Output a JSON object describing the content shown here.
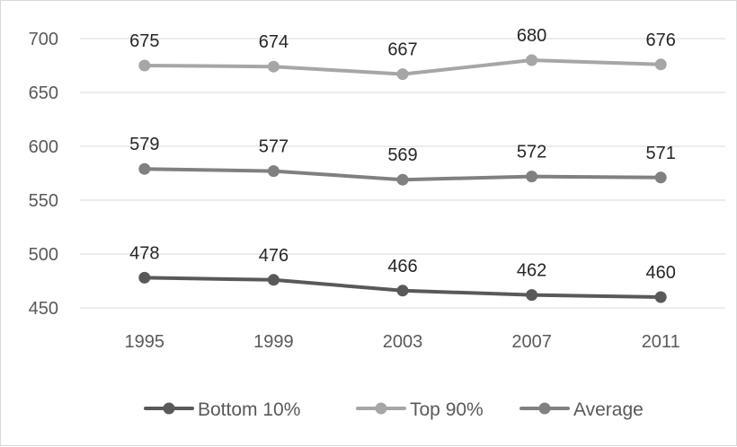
{
  "chart_data": {
    "type": "line",
    "title": "",
    "xlabel": "",
    "ylabel": "",
    "categories": [
      "1995",
      "1999",
      "2003",
      "2007",
      "2011"
    ],
    "ylim": [
      450,
      700
    ],
    "yticks": [
      450,
      500,
      550,
      600,
      650,
      700
    ],
    "grid": true,
    "legend_position": "bottom",
    "series": [
      {
        "name": "Bottom 10%",
        "values": [
          478,
          476,
          466,
          462,
          460
        ],
        "color": "#595959"
      },
      {
        "name": "Top 90%",
        "values": [
          675,
          674,
          667,
          680,
          676
        ],
        "color": "#a6a6a6"
      },
      {
        "name": "Average",
        "values": [
          579,
          577,
          569,
          572,
          571
        ],
        "color": "#808080"
      }
    ]
  }
}
